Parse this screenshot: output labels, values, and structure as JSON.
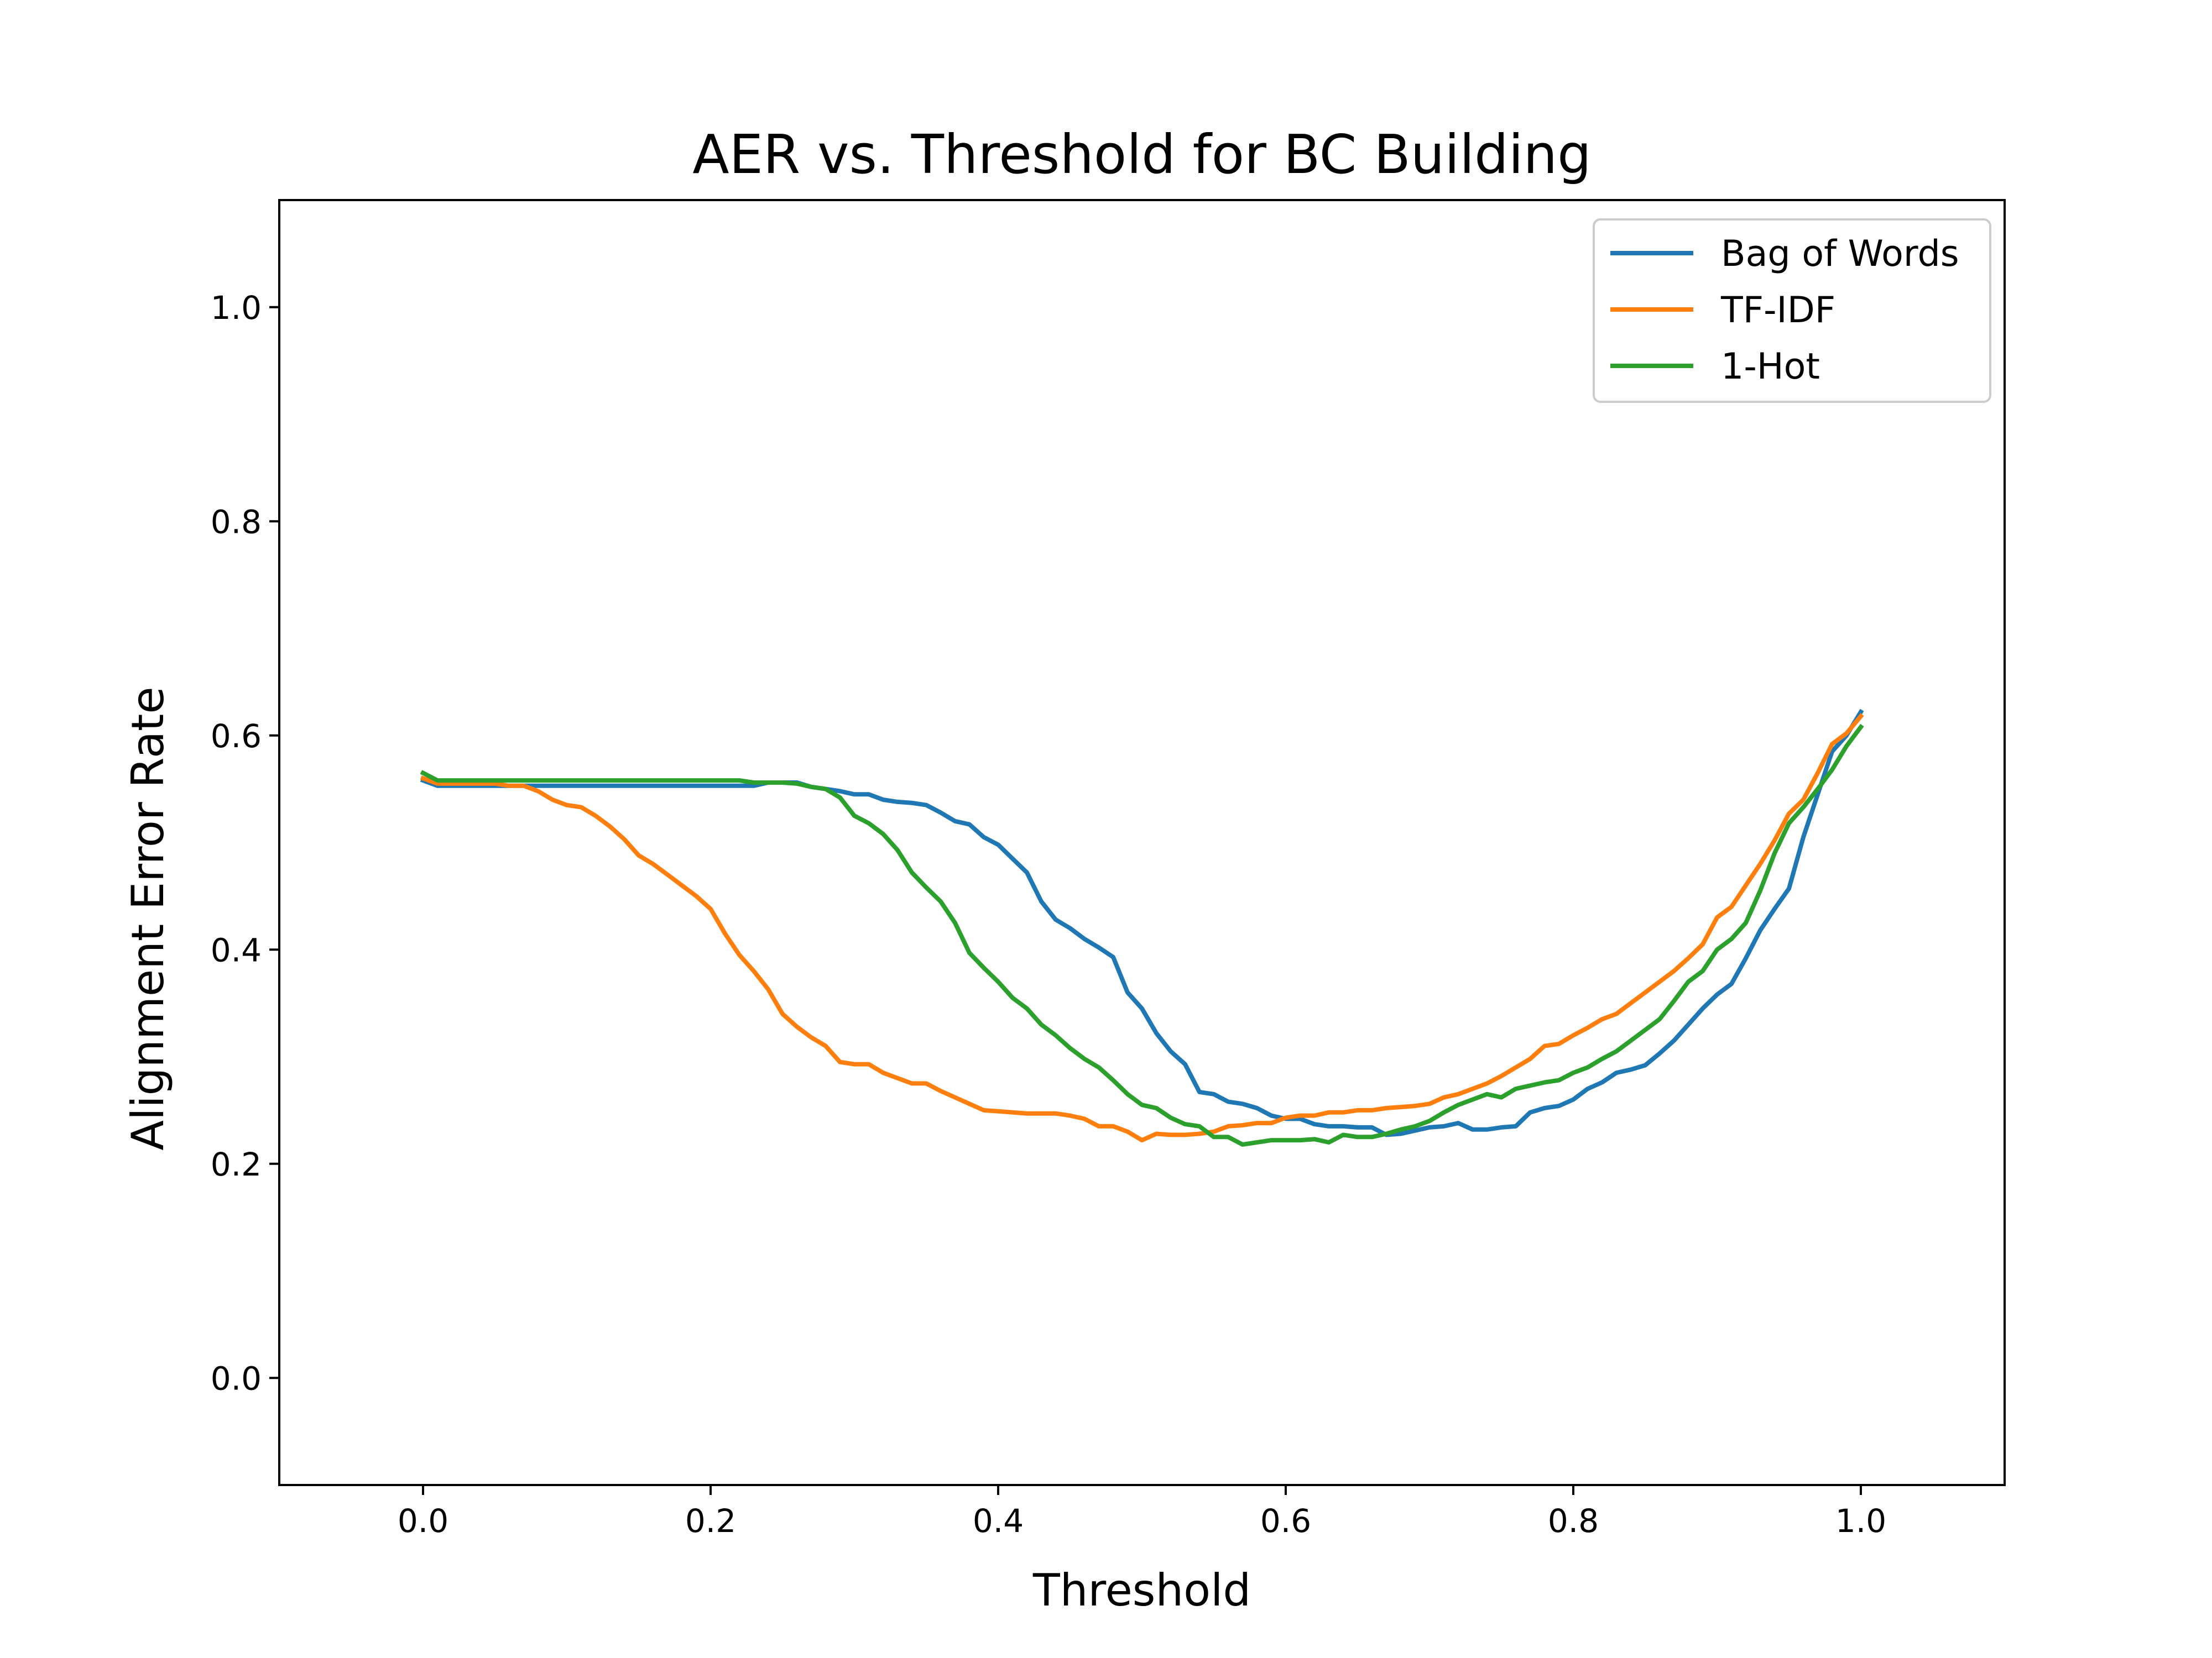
{
  "chart_data": {
    "type": "line",
    "title": "AER vs. Threshold for BC Building",
    "xlabel": "Threshold",
    "ylabel": "Alignment Error Rate",
    "xlim": [
      -0.1,
      1.1
    ],
    "ylim": [
      -0.1,
      1.1
    ],
    "xticks": [
      0.0,
      0.2,
      0.4,
      0.6,
      0.8,
      1.0
    ],
    "xtick_labels": [
      "0.0",
      "0.2",
      "0.4",
      "0.6",
      "0.8",
      "1.0"
    ],
    "yticks": [
      0.0,
      0.2,
      0.4,
      0.6,
      0.8,
      1.0
    ],
    "ytick_labels": [
      "0.0",
      "0.2",
      "0.4",
      "0.6",
      "0.8",
      "1.0"
    ],
    "grid": false,
    "legend_position": "top-right",
    "x": [
      0.0,
      0.01,
      0.02,
      0.03,
      0.04,
      0.05,
      0.06,
      0.07,
      0.08,
      0.09,
      0.1,
      0.11,
      0.12,
      0.13,
      0.14,
      0.15,
      0.16,
      0.17,
      0.18,
      0.19,
      0.2,
      0.21,
      0.22,
      0.23,
      0.24,
      0.25,
      0.26,
      0.27,
      0.28,
      0.29,
      0.3,
      0.31,
      0.32,
      0.33,
      0.34,
      0.35,
      0.36,
      0.37,
      0.38,
      0.39,
      0.4,
      0.41,
      0.42,
      0.43,
      0.44,
      0.45,
      0.46,
      0.47,
      0.48,
      0.49,
      0.5,
      0.51,
      0.52,
      0.53,
      0.54,
      0.55,
      0.56,
      0.57,
      0.58,
      0.59,
      0.6,
      0.61,
      0.62,
      0.63,
      0.64,
      0.65,
      0.66,
      0.67,
      0.68,
      0.69,
      0.7,
      0.71,
      0.72,
      0.73,
      0.74,
      0.75,
      0.76,
      0.77,
      0.78,
      0.79,
      0.8,
      0.81,
      0.82,
      0.83,
      0.84,
      0.85,
      0.86,
      0.87,
      0.88,
      0.89,
      0.9,
      0.91,
      0.92,
      0.93,
      0.94,
      0.95,
      0.96,
      0.97,
      0.98,
      0.99,
      1.0
    ],
    "series": [
      {
        "name": "Bag of Words",
        "color": "#1f77b4",
        "values": [
          0.558,
          0.553,
          0.553,
          0.553,
          0.553,
          0.553,
          0.553,
          0.553,
          0.553,
          0.553,
          0.553,
          0.553,
          0.553,
          0.553,
          0.553,
          0.553,
          0.553,
          0.553,
          0.553,
          0.553,
          0.553,
          0.553,
          0.553,
          0.553,
          0.556,
          0.556,
          0.556,
          0.552,
          0.55,
          0.548,
          0.545,
          0.545,
          0.54,
          0.538,
          0.537,
          0.535,
          0.528,
          0.52,
          0.517,
          0.505,
          0.498,
          0.485,
          0.472,
          0.445,
          0.428,
          0.42,
          0.41,
          0.402,
          0.393,
          0.36,
          0.345,
          0.322,
          0.305,
          0.293,
          0.267,
          0.265,
          0.258,
          0.256,
          0.252,
          0.245,
          0.242,
          0.242,
          0.237,
          0.235,
          0.235,
          0.234,
          0.234,
          0.227,
          0.228,
          0.231,
          0.234,
          0.235,
          0.238,
          0.232,
          0.232,
          0.234,
          0.235,
          0.248,
          0.252,
          0.254,
          0.26,
          0.27,
          0.276,
          0.285,
          0.288,
          0.292,
          0.303,
          0.315,
          0.33,
          0.345,
          0.358,
          0.368,
          0.392,
          0.418,
          0.438,
          0.457,
          0.505,
          0.545,
          0.585,
          0.6,
          0.622
        ]
      },
      {
        "name": "TF-IDF",
        "color": "#ff7f0e",
        "values": [
          0.56,
          0.555,
          0.555,
          0.555,
          0.555,
          0.555,
          0.553,
          0.553,
          0.548,
          0.54,
          0.535,
          0.533,
          0.525,
          0.515,
          0.503,
          0.488,
          0.48,
          0.47,
          0.46,
          0.45,
          0.438,
          0.415,
          0.395,
          0.38,
          0.363,
          0.34,
          0.328,
          0.318,
          0.31,
          0.295,
          0.293,
          0.293,
          0.285,
          0.28,
          0.275,
          0.275,
          0.268,
          0.262,
          0.256,
          0.25,
          0.249,
          0.248,
          0.247,
          0.247,
          0.247,
          0.245,
          0.242,
          0.235,
          0.235,
          0.23,
          0.222,
          0.228,
          0.227,
          0.227,
          0.228,
          0.23,
          0.235,
          0.236,
          0.238,
          0.238,
          0.243,
          0.245,
          0.245,
          0.248,
          0.248,
          0.25,
          0.25,
          0.252,
          0.253,
          0.254,
          0.256,
          0.262,
          0.265,
          0.27,
          0.275,
          0.282,
          0.29,
          0.298,
          0.31,
          0.312,
          0.32,
          0.327,
          0.335,
          0.34,
          0.35,
          0.36,
          0.37,
          0.38,
          0.392,
          0.405,
          0.43,
          0.44,
          0.46,
          0.48,
          0.502,
          0.527,
          0.54,
          0.565,
          0.592,
          0.602,
          0.618
        ]
      },
      {
        "name": "1-Hot",
        "color": "#2ca02c",
        "values": [
          0.565,
          0.558,
          0.558,
          0.558,
          0.558,
          0.558,
          0.558,
          0.558,
          0.558,
          0.558,
          0.558,
          0.558,
          0.558,
          0.558,
          0.558,
          0.558,
          0.558,
          0.558,
          0.558,
          0.558,
          0.558,
          0.558,
          0.558,
          0.556,
          0.556,
          0.556,
          0.555,
          0.552,
          0.55,
          0.542,
          0.525,
          0.518,
          0.508,
          0.493,
          0.472,
          0.458,
          0.445,
          0.425,
          0.397,
          0.383,
          0.37,
          0.355,
          0.345,
          0.33,
          0.32,
          0.308,
          0.298,
          0.29,
          0.278,
          0.265,
          0.255,
          0.252,
          0.243,
          0.237,
          0.235,
          0.225,
          0.225,
          0.218,
          0.22,
          0.222,
          0.222,
          0.222,
          0.223,
          0.22,
          0.227,
          0.225,
          0.225,
          0.228,
          0.232,
          0.235,
          0.24,
          0.248,
          0.255,
          0.26,
          0.265,
          0.262,
          0.27,
          0.273,
          0.276,
          0.278,
          0.285,
          0.29,
          0.298,
          0.305,
          0.315,
          0.325,
          0.335,
          0.352,
          0.37,
          0.38,
          0.4,
          0.41,
          0.425,
          0.455,
          0.49,
          0.518,
          0.533,
          0.55,
          0.568,
          0.59,
          0.608
        ]
      }
    ]
  }
}
